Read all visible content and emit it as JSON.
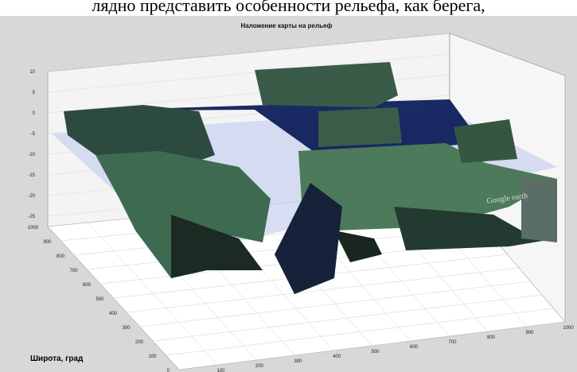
{
  "caption": "лядно представить особенности рельефа, как берега,",
  "chart_data": {
    "type": "surface",
    "title": "Наложение карты на рельеф",
    "xlabel": "",
    "ylabel": "Широта, град",
    "zlabel": "",
    "x_ticks": [
      "0",
      "100",
      "200",
      "300",
      "400",
      "500",
      "600",
      "700",
      "800",
      "900",
      "1000"
    ],
    "y_ticks": [
      "0",
      "100",
      "200",
      "300",
      "400",
      "500",
      "600",
      "700",
      "800",
      "900",
      "1000"
    ],
    "z_ticks": [
      "10",
      "5",
      "0",
      "-5",
      "-10",
      "-15",
      "-20",
      "-25"
    ],
    "xlim": [
      0,
      1000
    ],
    "ylim": [
      0,
      1000
    ],
    "zlim": [
      -25,
      10
    ],
    "grid": true,
    "watermark": "Google earth",
    "colors": {
      "terrain": "#3f6a52",
      "water": "#0e1f5a",
      "plane": "#c8d0f0",
      "background": "#d8d8d8"
    }
  }
}
